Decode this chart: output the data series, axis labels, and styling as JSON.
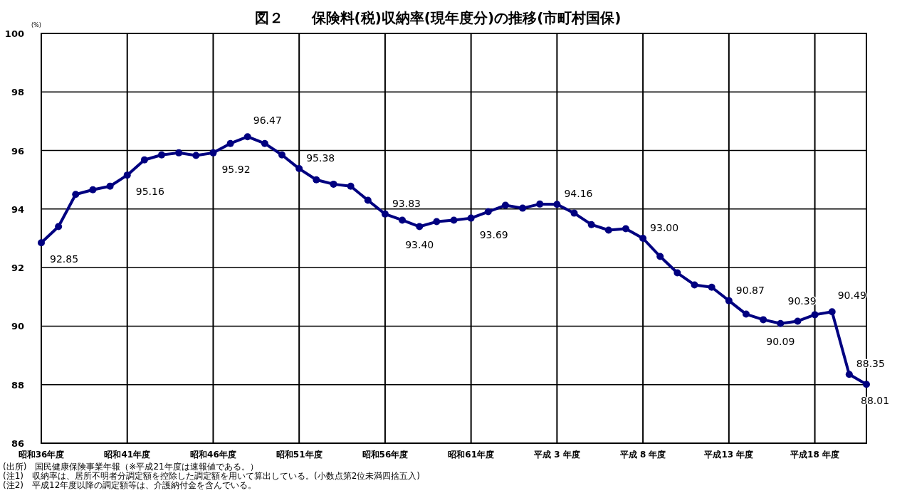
{
  "chart_data": {
    "type": "line",
    "title": "図２　　保険料(税)収納率(現年度分)の推移(市町村国保)",
    "ylabel": "(%)",
    "categories": [
      "昭和36年度",
      null,
      null,
      null,
      null,
      "昭和41年度",
      null,
      null,
      null,
      null,
      "昭和46年度",
      null,
      null,
      null,
      null,
      "昭和51年度",
      null,
      null,
      null,
      null,
      "昭和56年度",
      null,
      null,
      null,
      null,
      "昭和61年度",
      null,
      null,
      null,
      null,
      "平成 3 年度",
      null,
      null,
      null,
      null,
      "平成 8 年度",
      null,
      null,
      null,
      null,
      "平成13 年度",
      null,
      null,
      null,
      null,
      "平成18 年度",
      null,
      null,
      null
    ],
    "series": [
      {
        "color": "#000080",
        "values": [
          92.85,
          93.4,
          94.5,
          94.66,
          94.78,
          95.16,
          95.68,
          95.85,
          95.92,
          95.83,
          95.92,
          96.24,
          96.47,
          96.24,
          95.85,
          95.38,
          95.0,
          94.85,
          94.78,
          94.3,
          93.83,
          93.62,
          93.4,
          93.57,
          93.62,
          93.69,
          93.91,
          94.13,
          94.03,
          94.17,
          94.16,
          93.86,
          93.47,
          93.28,
          93.33,
          93.0,
          92.38,
          91.82,
          91.41,
          91.33,
          90.87,
          90.41,
          90.22,
          90.09,
          90.17,
          90.39,
          90.49,
          88.35,
          88.01
        ],
        "value_labels": [
          "92.85",
          null,
          null,
          null,
          null,
          "95.16",
          null,
          null,
          null,
          null,
          "95.92",
          null,
          "96.47",
          null,
          null,
          "95.38",
          null,
          null,
          null,
          null,
          "93.83",
          null,
          "93.40",
          null,
          null,
          "93.69",
          null,
          null,
          null,
          null,
          "94.16",
          null,
          null,
          null,
          null,
          "93.00",
          null,
          null,
          null,
          null,
          "90.87",
          null,
          null,
          "90.09",
          null,
          "90.39",
          "90.49",
          "88.35",
          "88.01"
        ]
      }
    ],
    "ylim": [
      86,
      100
    ],
    "yticks": [
      86,
      88,
      90,
      92,
      94,
      96,
      98,
      100
    ],
    "grid": true,
    "marker": "circle",
    "line_style": "solid",
    "annotations": [
      "(出所)　国民健康保険事業年報（※平成21年度は速報値である。）",
      "(注1)　収納率は、居所不明者分調定額を控除した調定額を用いて算出している。(小数点第2位未満四捨五入)",
      "(注2)　平成12年度以降の調定額等は、介護納付金を含んでいる。"
    ]
  }
}
